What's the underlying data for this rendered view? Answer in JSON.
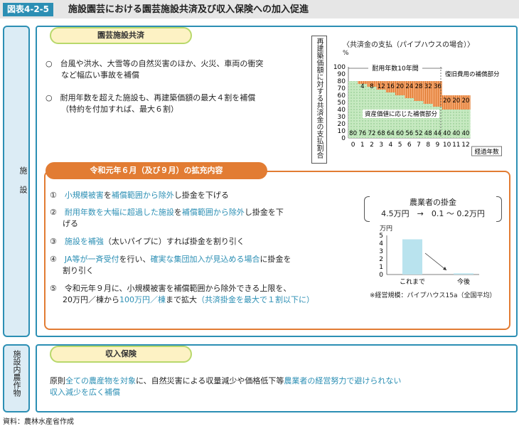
{
  "figure": {
    "tag": "図表4-2-5",
    "title": "施設園芸における園芸施設共済及び収入保険への加入促進"
  },
  "tabs": {
    "facility": "施設",
    "other": "施設内農作物"
  },
  "kyosai": {
    "label": "園芸施設共済",
    "bullet1_line1": "○　台風や洪水、大雪等の自然災害のほか、火災、車両の衝突",
    "bullet1_line2": "など幅広い事故を補償",
    "bullet2_line1": "○　耐用年数を超えた施設も、再建築価額の最大４割を補償",
    "bullet2_line2": "（特約を付加すれば、最大６割）"
  },
  "chart_data": {
    "type": "bar",
    "title": "〈共済金の支払（パイプハウスの場合）〉",
    "ylabel": "再建築価額に対する共済金の支払割合",
    "yunit": "%",
    "xlabel": "経過年数",
    "ylim": [
      0,
      100
    ],
    "yticks": [
      0,
      10,
      20,
      30,
      40,
      50,
      60,
      70,
      80,
      90,
      100
    ],
    "categories": [
      "0",
      "1",
      "2",
      "3",
      "4",
      "5",
      "6",
      "7",
      "8",
      "9",
      "10",
      "11",
      "12"
    ],
    "series": [
      {
        "name": "資産価値に応じた補償部分",
        "values": [
          80,
          76,
          72,
          68,
          64,
          60,
          56,
          52,
          48,
          44,
          40,
          40,
          40
        ],
        "color": "#c6e9c0"
      },
      {
        "name": "復旧費用の補償部分",
        "values": [
          0,
          4,
          8,
          12,
          16,
          20,
          24,
          28,
          32,
          36,
          20,
          20,
          20
        ],
        "color": "#f2a36b"
      }
    ],
    "annotation_period": "耐用年数10年間",
    "annotation_recovery": "復旧費用の補償部分",
    "annotation_asset": "資産価値に応じた補償部分"
  },
  "expansion": {
    "label": "令和元年６月（及び９月）の拡充内容",
    "i1_no": "①",
    "i1_a": "小規模被害",
    "i1_b": "を",
    "i1_c": "補償範囲から除外",
    "i1_d": "し掛金を下げる",
    "i2_no": "②",
    "i2_a": "耐用年数を大幅に超過した施設",
    "i2_b": "を",
    "i2_c": "補償範囲から除外",
    "i2_d": "し掛金を下",
    "i2_line2": "げる",
    "i3_no": "③",
    "i3_a": "施設を補強",
    "i3_b": "（太いパイプに）すれば掛金を割り引く",
    "i4_no": "④",
    "i4_a": "JA等が一斉受付",
    "i4_b": "を行い、",
    "i4_c": "確実な集団加入が見込める場合",
    "i4_d": "に掛金を",
    "i4_line2": "割り引く",
    "i5_no": "⑤",
    "i5_a": "令和元年９月に、小規模被害を補償範囲から除外できる上限を、",
    "i5_b": "20万円／棟から",
    "i5_c": "100万円／棟",
    "i5_d": "まで拡大",
    "i5_e": "（共済掛金を最大で１割以下に）"
  },
  "premium": {
    "title": "農業者の掛金",
    "from": "4.5万円",
    "arrow": "→",
    "to": "0.1 ～ 0.2万円",
    "unit": "万円",
    "yticks": [
      "0",
      "1",
      "2",
      "3",
      "4",
      "5"
    ],
    "bars": [
      {
        "label": "これまで",
        "value": 4.5
      },
      {
        "label": "今後",
        "value": 0.15
      }
    ],
    "note": "※経営規模：パイプハウス15a（全国平均）"
  },
  "income": {
    "label": "収入保険",
    "l1_a": "原則",
    "l1_b": "全ての農産物を対象",
    "l1_c": "に、自然災害による収量減少や価格低下等",
    "l1_d": "農業者の経営努力で避けられない",
    "l2": "収入減少を広く補償"
  },
  "source": "資料：農林水産省作成"
}
